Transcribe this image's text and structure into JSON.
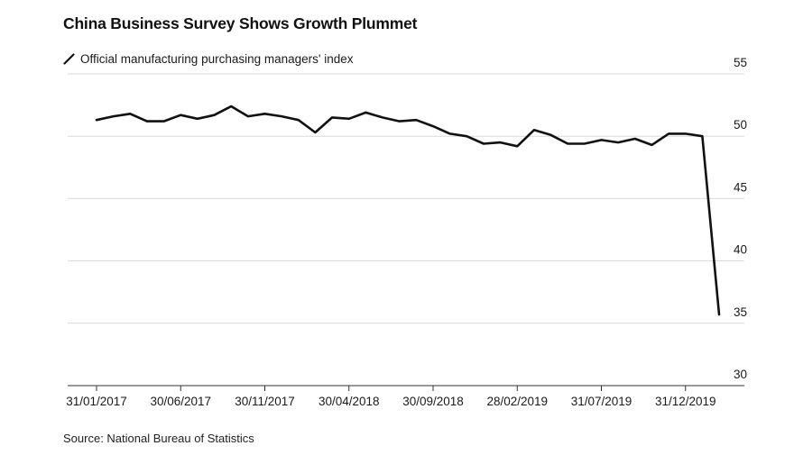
{
  "chart_data": {
    "type": "line",
    "title": "China Business Survey Shows Growth Plummet",
    "legend": [
      "Official manufacturing purchasing managers' index"
    ],
    "legend_position": "top-left",
    "source": "Source: National Bureau of Statistics",
    "x_tick_labels": [
      "31/01/2017",
      "30/06/2017",
      "30/11/2017",
      "30/04/2018",
      "30/09/2018",
      "28/02/2019",
      "31/07/2019",
      "31/12/2019"
    ],
    "x_tick_month_index": [
      0,
      5,
      10,
      15,
      20,
      25,
      30,
      35
    ],
    "y_ticks": [
      55,
      50,
      45,
      40,
      35,
      30
    ],
    "ylim": [
      30,
      55
    ],
    "y_axis_side": "right",
    "grid": true,
    "colors": {
      "line": "#111111",
      "grid": "#d9d9d9",
      "axis": "#333333"
    },
    "series": [
      {
        "name": "Official manufacturing purchasing managers' index",
        "x": [
          "2017-01",
          "2017-02",
          "2017-03",
          "2017-04",
          "2017-05",
          "2017-06",
          "2017-07",
          "2017-08",
          "2017-09",
          "2017-10",
          "2017-11",
          "2017-12",
          "2018-01",
          "2018-02",
          "2018-03",
          "2018-04",
          "2018-05",
          "2018-06",
          "2018-07",
          "2018-08",
          "2018-09",
          "2018-10",
          "2018-11",
          "2018-12",
          "2019-01",
          "2019-02",
          "2019-03",
          "2019-04",
          "2019-05",
          "2019-06",
          "2019-07",
          "2019-08",
          "2019-09",
          "2019-10",
          "2019-11",
          "2019-12",
          "2020-01",
          "2020-02"
        ],
        "values": [
          51.3,
          51.6,
          51.8,
          51.2,
          51.2,
          51.7,
          51.4,
          51.7,
          52.4,
          51.6,
          51.8,
          51.6,
          51.3,
          50.3,
          51.5,
          51.4,
          51.9,
          51.5,
          51.2,
          51.3,
          50.8,
          50.2,
          50.0,
          49.4,
          49.5,
          49.2,
          50.5,
          50.1,
          49.4,
          49.4,
          49.7,
          49.5,
          49.8,
          49.3,
          50.2,
          50.2,
          50.0,
          35.7
        ]
      }
    ]
  }
}
